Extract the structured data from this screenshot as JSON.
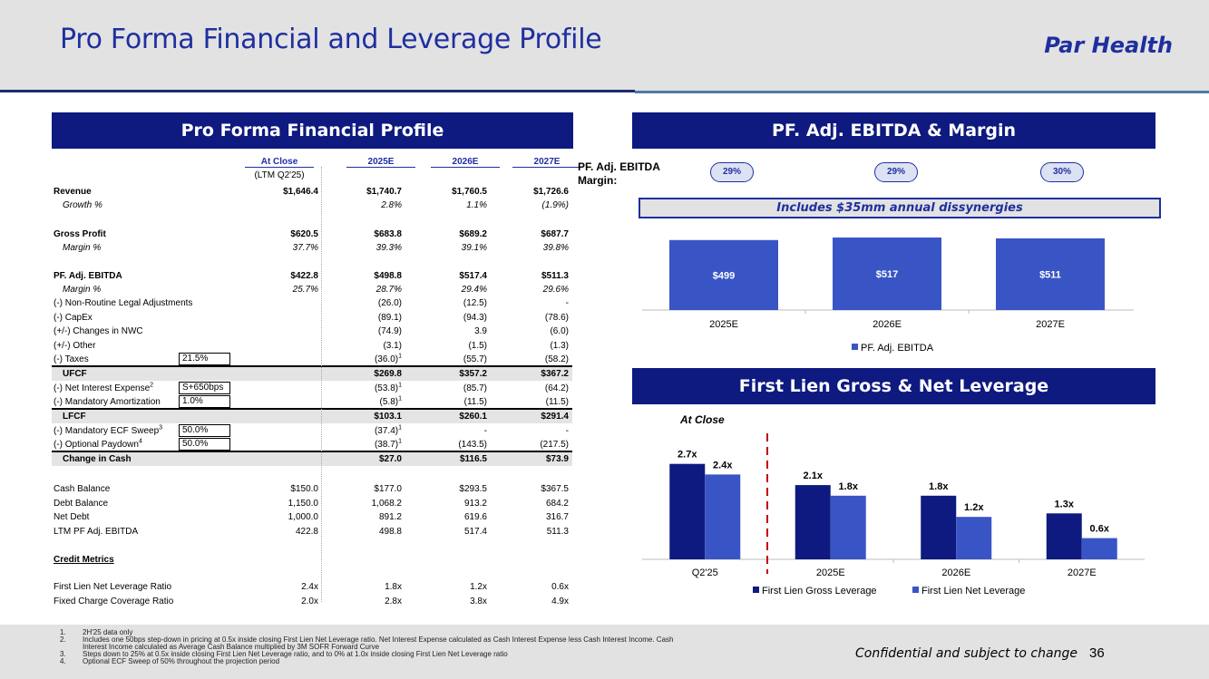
{
  "header": {
    "title": "Pro Forma Financial and Leverage Profile",
    "brand": "Par Health"
  },
  "left_panel": {
    "title": "Pro Forma Financial Profile",
    "columns": [
      "At Close",
      "2025E",
      "2026E",
      "2027E"
    ],
    "subheader": "(LTM Q2'25)",
    "rows": {
      "revenue": {
        "label": "Revenue",
        "v": [
          "$1,646.4",
          "$1,740.7",
          "$1,760.5",
          "$1,726.6"
        ]
      },
      "growth": {
        "label": "Growth %",
        "v": [
          "",
          "2.8%",
          "1.1%",
          "(1.9%)"
        ]
      },
      "gross_profit": {
        "label": "Gross Profit",
        "v": [
          "$620.5",
          "$683.8",
          "$689.2",
          "$687.7"
        ]
      },
      "gp_margin": {
        "label": "Margin %",
        "v": [
          "37.7%",
          "39.3%",
          "39.1%",
          "39.8%"
        ]
      },
      "ebitda": {
        "label": "PF. Adj. EBITDA",
        "v": [
          "$422.8",
          "$498.8",
          "$517.4",
          "$511.3"
        ]
      },
      "ebitda_margin": {
        "label": "Margin %",
        "v": [
          "25.7%",
          "28.7%",
          "29.4%",
          "29.6%"
        ]
      },
      "legal": {
        "label": "(-) Non-Routine Legal Adjustments",
        "v": [
          "",
          "(26.0)",
          "(12.5)",
          "-"
        ]
      },
      "capex": {
        "label": "(-) CapEx",
        "v": [
          "",
          "(89.1)",
          "(94.3)",
          "(78.6)"
        ]
      },
      "nwc": {
        "label": "(+/-) Changes in NWC",
        "v": [
          "",
          "(74.9)",
          "3.9",
          "(6.0)"
        ]
      },
      "other": {
        "label": "(+/-) Other",
        "v": [
          "",
          "(3.1)",
          "(1.5)",
          "(1.3)"
        ]
      },
      "taxes": {
        "label": "(-) Taxes",
        "input": "21.5%",
        "v": [
          "",
          "(36.0)",
          "(55.7)",
          "(58.2)"
        ],
        "fn": "1"
      },
      "ufcf": {
        "label": "UFCF",
        "v": [
          "",
          "$269.8",
          "$357.2",
          "$367.2"
        ]
      },
      "interest": {
        "label": "(-) Net Interest Expense",
        "sup": "2",
        "input": "S+650bps",
        "v": [
          "",
          "(53.8)",
          "(85.7)",
          "(64.2)"
        ],
        "fn": "1"
      },
      "amort": {
        "label": "(-) Mandatory Amortization",
        "input": "1.0%",
        "v": [
          "",
          "(5.8)",
          "(11.5)",
          "(11.5)"
        ],
        "fn": "1"
      },
      "lfcf": {
        "label": "LFCF",
        "v": [
          "",
          "$103.1",
          "$260.1",
          "$291.4"
        ]
      },
      "ecf": {
        "label": "(-) Mandatory ECF Sweep",
        "sup": "3",
        "input": "50.0%",
        "v": [
          "",
          "(37.4)",
          "-",
          "-"
        ],
        "fn": "1"
      },
      "paydown": {
        "label": "(-) Optional Paydown",
        "sup": "4",
        "input": "50.0%",
        "v": [
          "",
          "(38.7)",
          "(143.5)",
          "(217.5)"
        ],
        "fn": "1"
      },
      "change_cash": {
        "label": "Change in Cash",
        "v": [
          "",
          "$27.0",
          "$116.5",
          "$73.9"
        ]
      },
      "cash": {
        "label": "Cash Balance",
        "v": [
          "$150.0",
          "$177.0",
          "$293.5",
          "$367.5"
        ]
      },
      "debt": {
        "label": "Debt Balance",
        "v": [
          "1,150.0",
          "1,068.2",
          "913.2",
          "684.2"
        ]
      },
      "net_debt": {
        "label": "Net Debt",
        "v": [
          "1,000.0",
          "891.2",
          "619.6",
          "316.7"
        ]
      },
      "ltm": {
        "label": "LTM PF Adj. EBITDA",
        "v": [
          "422.8",
          "498.8",
          "517.4",
          "511.3"
        ]
      },
      "credit_title": {
        "label": "Credit Metrics"
      },
      "fl_net": {
        "label": "First Lien Net Leverage Ratio",
        "v": [
          "2.4x",
          "1.8x",
          "1.2x",
          "0.6x"
        ]
      },
      "fccr": {
        "label": "Fixed Charge Coverage Ratio",
        "v": [
          "2.0x",
          "2.8x",
          "3.8x",
          "4.9x"
        ]
      }
    }
  },
  "ebitda_panel": {
    "title": "PF. Adj. EBITDA & Margin",
    "margin_label": "PF. Adj. EBITDA Margin:",
    "margins": [
      "29%",
      "29%",
      "30%"
    ],
    "note": "Includes $35mm annual dissynergies"
  },
  "leverage_panel": {
    "title": "First Lien Gross & Net Leverage",
    "at_close_label": "At Close"
  },
  "chart_data": [
    {
      "type": "bar",
      "title": "PF. Adj. EBITDA & Margin",
      "categories": [
        "2025E",
        "2026E",
        "2027E"
      ],
      "values": [
        499,
        517,
        511
      ],
      "labels": [
        "$499",
        "$517",
        "$511"
      ],
      "legend": [
        "PF. Adj. EBITDA"
      ],
      "color": "#3955c5"
    },
    {
      "type": "bar",
      "title": "First Lien Gross & Net Leverage",
      "categories": [
        "Q2'25",
        "2025E",
        "2026E",
        "2027E"
      ],
      "series": [
        {
          "name": "First Lien Gross Leverage",
          "values": [
            2.7,
            2.1,
            1.8,
            1.3
          ],
          "labels": [
            "2.7x",
            "2.1x",
            "1.8x",
            "1.3x"
          ],
          "color": "#0e1a7f"
        },
        {
          "name": "First Lien Net Leverage",
          "values": [
            2.4,
            1.8,
            1.2,
            0.6
          ],
          "labels": [
            "2.4x",
            "1.8x",
            "1.2x",
            "0.6x"
          ],
          "color": "#3955c5"
        }
      ],
      "ylim": [
        0,
        3.0
      ]
    }
  ],
  "footer": {
    "notes": [
      {
        "n": "1.",
        "text": "2H'25 data only"
      },
      {
        "n": "2.",
        "text": "Includes one 50bps step-down in pricing at 0.5x inside closing First Lien Net Leverage ratio. Net Interest Expense calculated as Cash Interest Expense less Cash Interest Income. Cash"
      },
      {
        "n": "",
        "text": "Interest Income calculated as Average Cash Balance multiplied by 3M SOFR Forward Curve"
      },
      {
        "n": "3.",
        "text": "Steps down to 25% at 0.5x inside closing First Lien Net Leverage ratio, and to 0% at 1.0x inside closing First Lien Net Leverage ratio"
      },
      {
        "n": "4.",
        "text": "Optional ECF Sweep of 50% throughout the projection period"
      }
    ],
    "confidential": "Confidential and subject to change",
    "page": "36"
  }
}
